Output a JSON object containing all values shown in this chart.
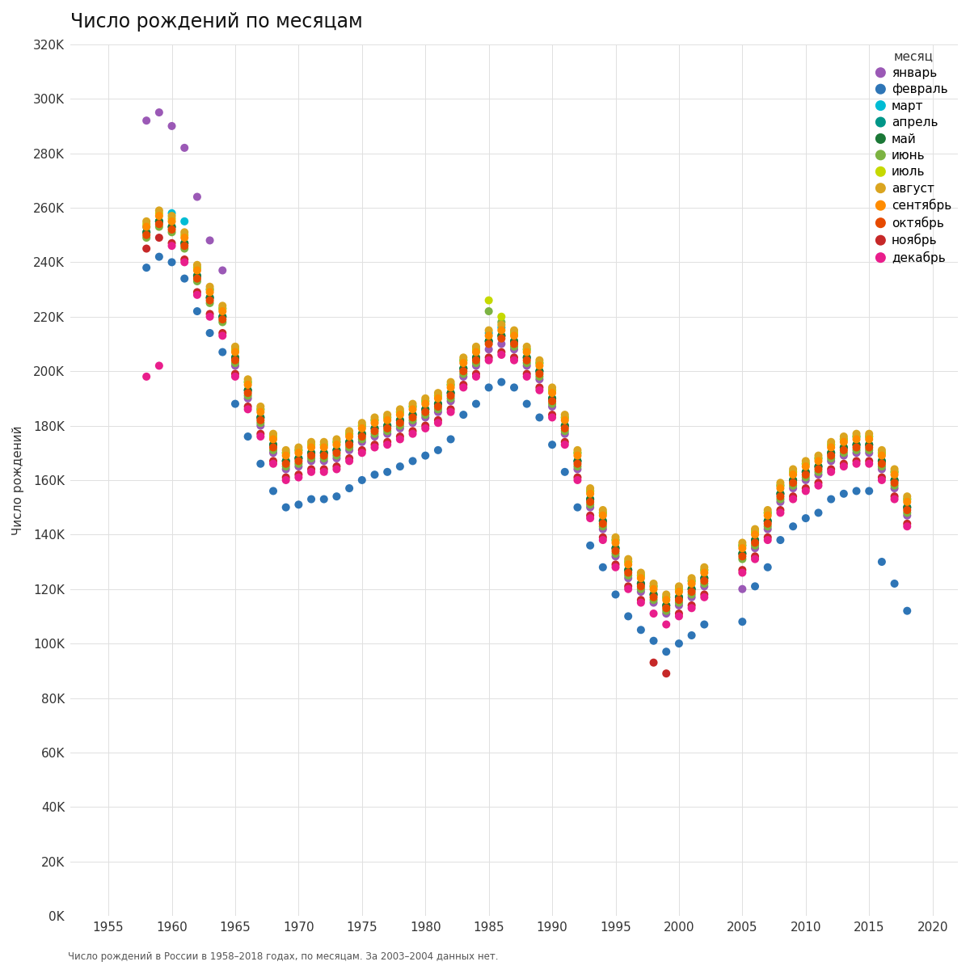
{
  "title": "Число рождений по месяцам",
  "ylabel": "Число рождений",
  "footnote": "Число рождений в России в 1958–2018 годах, по месяцам. За 2003–2004 данных нет.",
  "legend_title": "месяц",
  "months": [
    "январь",
    "февраль",
    "март",
    "апрель",
    "май",
    "июнь",
    "июль",
    "август",
    "сентябрь",
    "октябрь",
    "ноябрь",
    "декабрь"
  ],
  "colors": [
    "#9B59B6",
    "#2E75B6",
    "#00BCD4",
    "#009688",
    "#1B7837",
    "#7CB342",
    "#C6D900",
    "#DAA520",
    "#FF8C00",
    "#E64A00",
    "#C62828",
    "#E91E8C"
  ],
  "ylim": [
    0,
    320000
  ],
  "ytick_values": [
    0,
    20000,
    40000,
    60000,
    80000,
    100000,
    120000,
    140000,
    160000,
    180000,
    200000,
    220000,
    240000,
    260000,
    280000,
    300000,
    320000
  ],
  "xtick_values": [
    1955,
    1960,
    1965,
    1970,
    1975,
    1980,
    1985,
    1990,
    1995,
    2000,
    2005,
    2010,
    2015,
    2020
  ],
  "xlim": [
    1952,
    2022
  ],
  "marker_size": 52,
  "background_color": "#FFFFFF",
  "grid_color": "#E0E0E0"
}
